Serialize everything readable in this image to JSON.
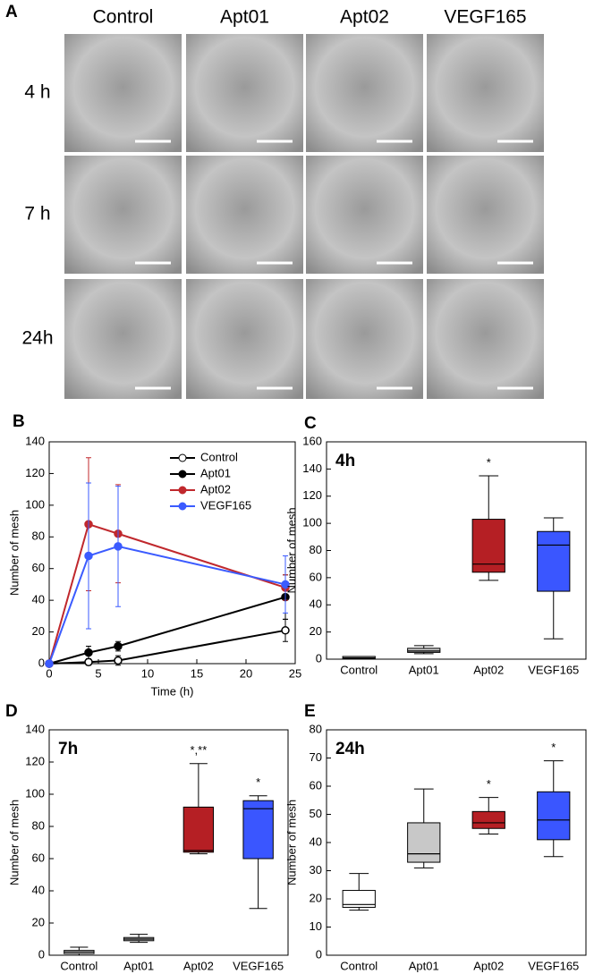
{
  "panel_a": {
    "letter": "A",
    "columns": [
      "Control",
      "Apt01",
      "Apt02",
      "VEGF165"
    ],
    "rows": [
      "4 h",
      "7 h",
      "24h"
    ]
  },
  "chart_data": [
    {
      "type": "line",
      "panel": "B",
      "xlabel": "Time (h)",
      "ylabel": "Number of mesh",
      "x": [
        0,
        4,
        7,
        24
      ],
      "xlim": [
        0,
        25
      ],
      "xticks": [
        0,
        5,
        10,
        15,
        20,
        25
      ],
      "ylim": [
        0,
        140
      ],
      "yticks": [
        0,
        20,
        40,
        60,
        80,
        100,
        120,
        140
      ],
      "legend": "upper right",
      "series": [
        {
          "name": "Control",
          "color": "#000000",
          "marker": "open",
          "values": [
            0,
            1,
            2,
            21
          ],
          "errors": [
            0,
            2,
            3,
            7
          ]
        },
        {
          "name": "Apt01",
          "color": "#000000",
          "marker": "filled",
          "values": [
            0,
            7,
            11,
            42
          ],
          "errors": [
            0,
            4,
            3,
            14
          ]
        },
        {
          "name": "Apt02",
          "color": "#c0282d",
          "marker": "filled",
          "values": [
            0,
            88,
            82,
            48
          ],
          "errors": [
            0,
            42,
            31,
            8
          ]
        },
        {
          "name": "VEGF165",
          "color": "#3b5bff",
          "marker": "filled",
          "values": [
            0,
            68,
            74,
            50
          ],
          "errors": [
            0,
            46,
            38,
            18
          ]
        }
      ]
    },
    {
      "type": "box",
      "panel": "C",
      "annotation": "4h",
      "ylabel": "Number of mesh",
      "categories": [
        "Control",
        "Apt01",
        "Apt02",
        "VEGF165"
      ],
      "ylim": [
        0,
        160
      ],
      "yticks": [
        0,
        20,
        40,
        60,
        80,
        100,
        120,
        140,
        160
      ],
      "boxes": [
        {
          "min": 0,
          "q1": 0.5,
          "median": 1,
          "q3": 2,
          "max": 2,
          "color": "#ffffff"
        },
        {
          "min": 4,
          "q1": 5,
          "median": 6,
          "q3": 8,
          "max": 10,
          "color": "#c8c8c8"
        },
        {
          "min": 58,
          "q1": 64,
          "median": 70,
          "q3": 103,
          "max": 135,
          "color": "#b51f24",
          "label": "*"
        },
        {
          "min": 15,
          "q1": 50,
          "median": 84,
          "q3": 94,
          "max": 104,
          "color": "#3a56ff"
        }
      ]
    },
    {
      "type": "box",
      "panel": "D",
      "annotation": "7h",
      "ylabel": "Number of mesh",
      "categories": [
        "Control",
        "Apt01",
        "Apt02",
        "VEGF165"
      ],
      "ylim": [
        0,
        140
      ],
      "yticks": [
        0,
        20,
        40,
        60,
        80,
        100,
        120,
        140
      ],
      "boxes": [
        {
          "min": 0,
          "q1": 1,
          "median": 2,
          "q3": 3,
          "max": 5,
          "color": "#ffffff"
        },
        {
          "min": 8,
          "q1": 9,
          "median": 10,
          "q3": 11,
          "max": 13,
          "color": "#c8c8c8"
        },
        {
          "min": 63,
          "q1": 64,
          "median": 65,
          "q3": 92,
          "max": 119,
          "color": "#b51f24",
          "label": "*,**"
        },
        {
          "min": 29,
          "q1": 60,
          "median": 91,
          "q3": 96,
          "max": 99,
          "color": "#3a56ff",
          "label": "*"
        }
      ]
    },
    {
      "type": "box",
      "panel": "E",
      "annotation": "24h",
      "ylabel": "Number of mesh",
      "categories": [
        "Control",
        "Apt01",
        "Apt02",
        "VEGF165"
      ],
      "ylim": [
        0,
        80
      ],
      "yticks": [
        0,
        10,
        20,
        30,
        40,
        50,
        60,
        70,
        80
      ],
      "boxes": [
        {
          "min": 16,
          "q1": 17,
          "median": 18,
          "q3": 23,
          "max": 29,
          "color": "#ffffff"
        },
        {
          "min": 31,
          "q1": 33,
          "median": 36,
          "q3": 47,
          "max": 59,
          "color": "#c8c8c8"
        },
        {
          "min": 43,
          "q1": 45,
          "median": 47,
          "q3": 51,
          "max": 56,
          "color": "#b51f24",
          "label": "*"
        },
        {
          "min": 35,
          "q1": 41,
          "median": 48,
          "q3": 58,
          "max": 69,
          "color": "#3a56ff",
          "label": "*"
        }
      ]
    }
  ]
}
